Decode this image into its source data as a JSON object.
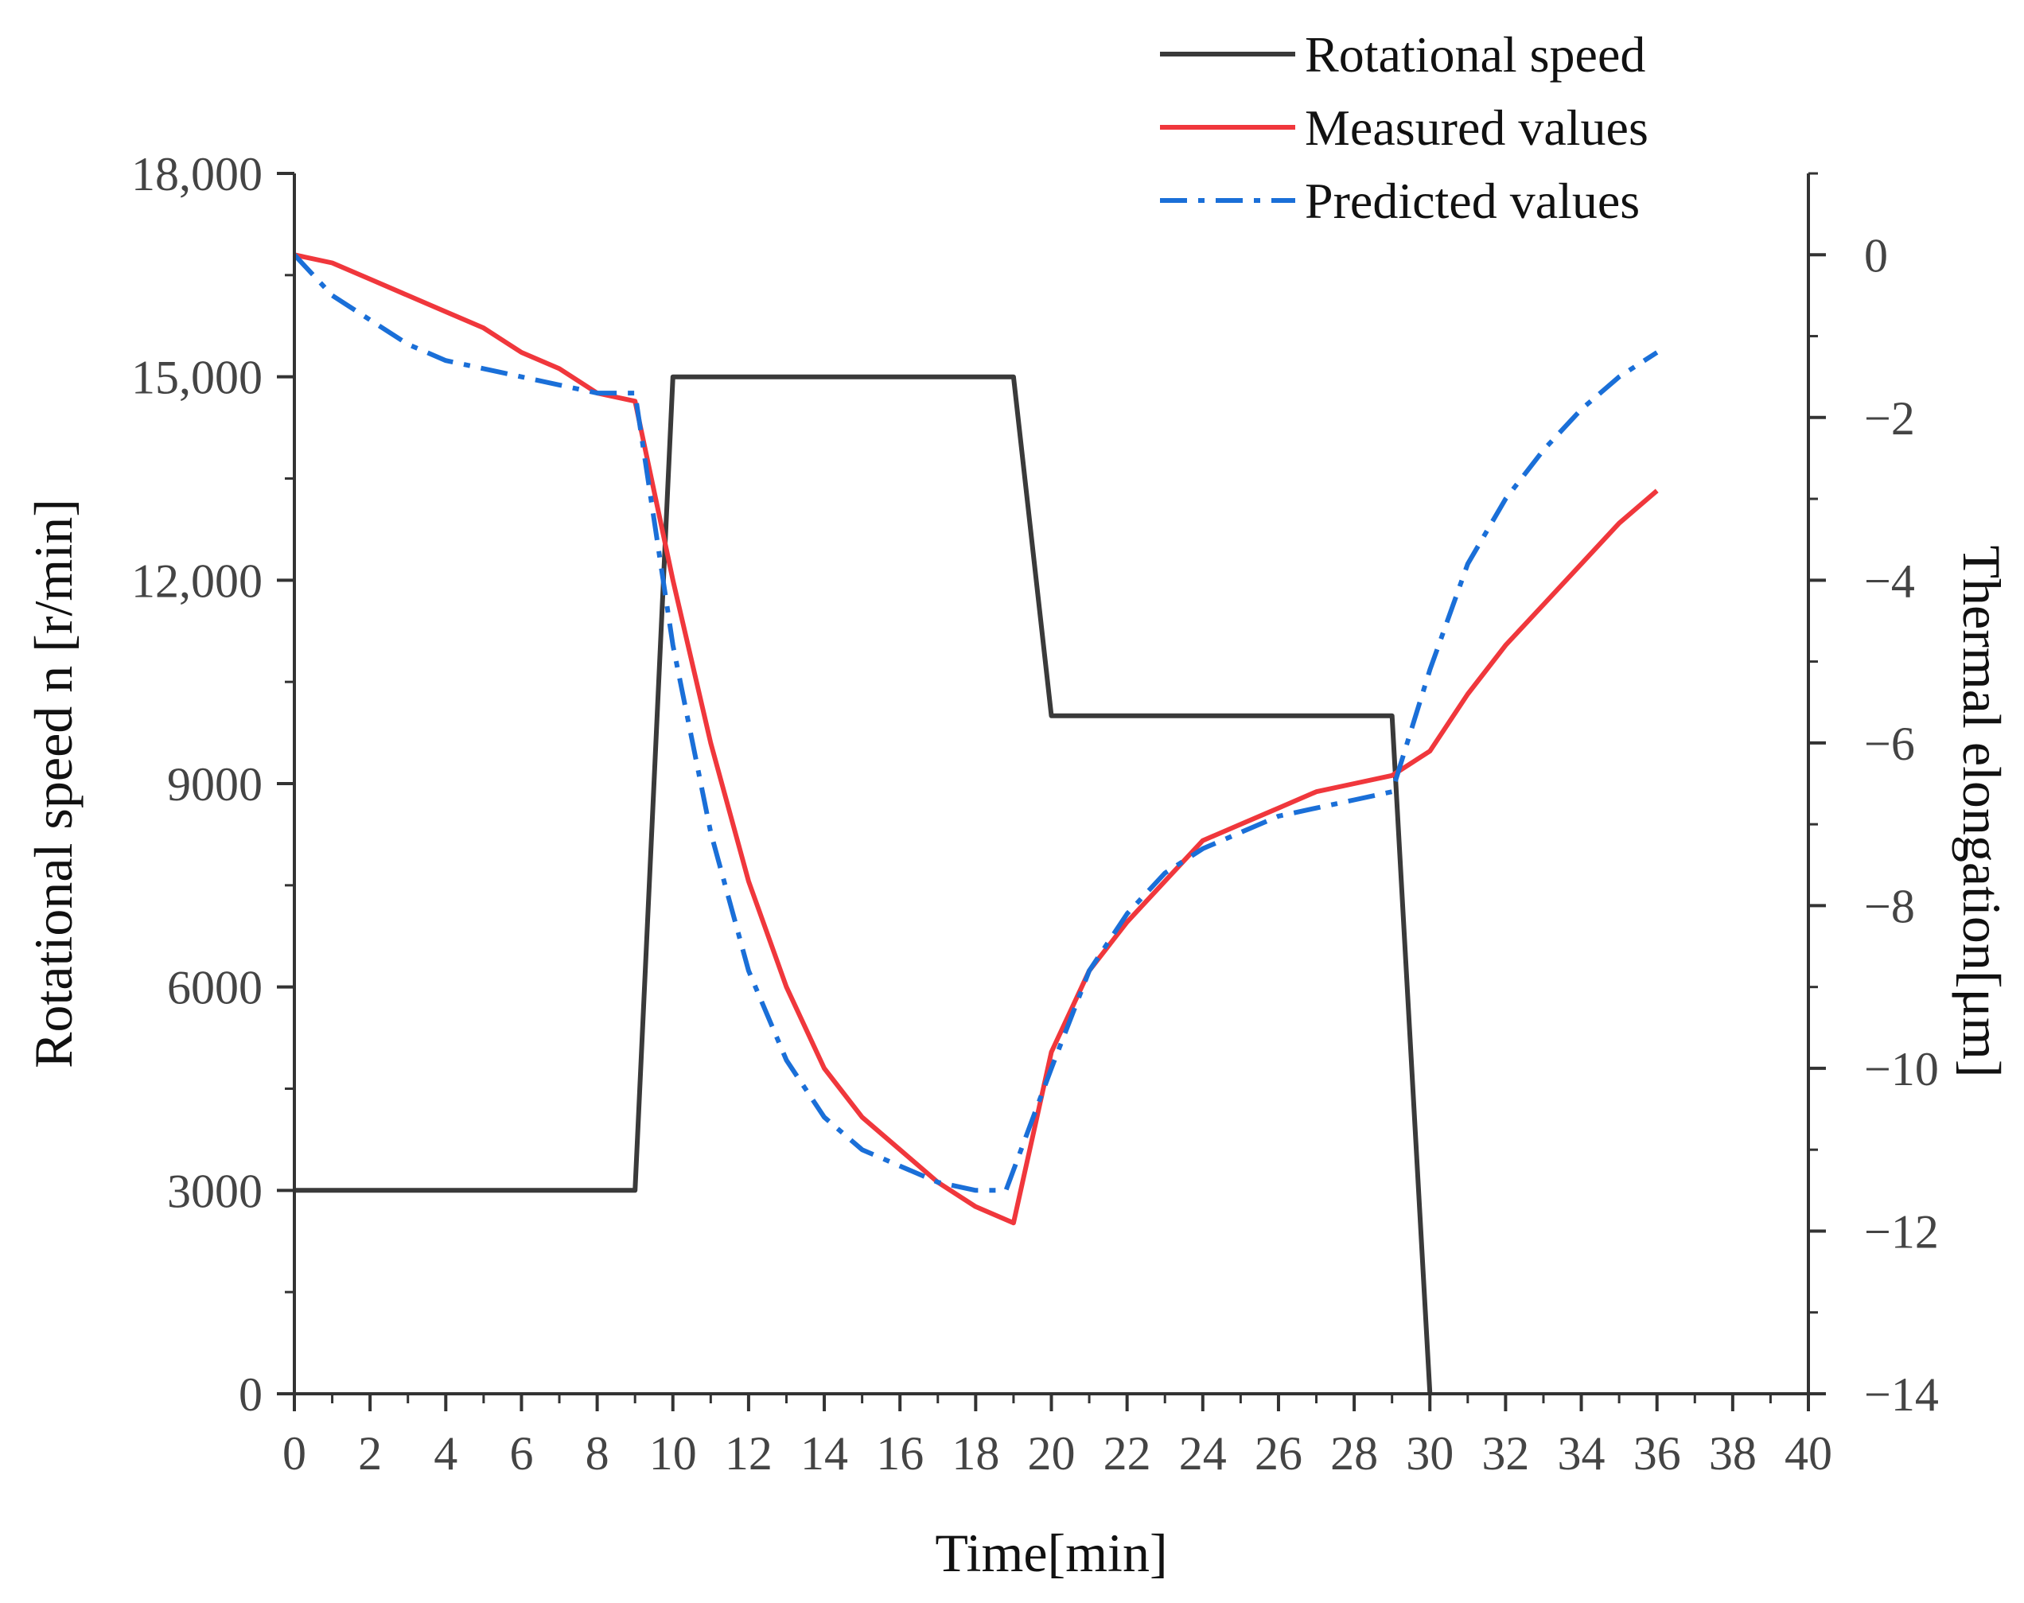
{
  "chart_data": {
    "type": "line",
    "title": "",
    "xlabel": "Time[min]",
    "ylabel": "Rotational speed n [r/min]",
    "y2label": "Thermal elongation[μm]",
    "xlim": [
      0,
      40
    ],
    "ylim": [
      0,
      18000
    ],
    "y2lim": [
      -14,
      1
    ],
    "grid": false,
    "legend_position": "top-right",
    "x_ticks": [
      0,
      2,
      4,
      6,
      8,
      10,
      12,
      14,
      16,
      18,
      20,
      22,
      24,
      26,
      28,
      30,
      32,
      34,
      36,
      38,
      40
    ],
    "x_tick_labels": [
      "0",
      "2",
      "4",
      "6",
      "8",
      "10",
      "12",
      "14",
      "16",
      "18",
      "20",
      "22",
      "24",
      "26",
      "28",
      "30",
      "32",
      "34",
      "36",
      "38",
      "40"
    ],
    "y_ticks": [
      0,
      3000,
      6000,
      9000,
      12000,
      15000,
      18000
    ],
    "y_tick_labels": [
      "0",
      "3000",
      "6000",
      "9000",
      "12,000",
      "15,000",
      "18,000"
    ],
    "y2_ticks": [
      0,
      -2,
      -4,
      -6,
      -8,
      -10,
      -12,
      -14
    ],
    "y2_tick_labels": [
      "0",
      "−2",
      "−4",
      "−6",
      "−8",
      "−10",
      "−12",
      "−14"
    ],
    "series": [
      {
        "name": "Rotational speed",
        "axis": "left",
        "color": "#3a3a3a",
        "dash": "solid",
        "x": [
          0,
          9,
          10,
          19,
          20,
          29,
          30
        ],
        "values": [
          3000,
          3000,
          15000,
          15000,
          10000,
          10000,
          0
        ]
      },
      {
        "name": "Measured values",
        "axis": "right",
        "color": "#f0373c",
        "dash": "solid",
        "x": [
          0,
          1,
          2,
          3,
          4,
          5,
          6,
          7,
          8,
          9,
          10,
          11,
          12,
          13,
          14,
          15,
          16,
          17,
          18,
          19,
          20,
          21,
          22,
          23,
          24,
          25,
          26,
          27,
          28,
          29,
          30,
          31,
          32,
          33,
          34,
          35,
          36
        ],
        "values": [
          0,
          -0.1,
          -0.3,
          -0.5,
          -0.7,
          -0.9,
          -1.2,
          -1.4,
          -1.7,
          -1.8,
          -4,
          -6,
          -7.7,
          -9,
          -10,
          -10.6,
          -11,
          -11.4,
          -11.7,
          -11.9,
          -9.8,
          -8.8,
          -8.2,
          -7.7,
          -7.2,
          -7,
          -6.8,
          -6.6,
          -6.5,
          -6.4,
          -6.1,
          -5.4,
          -4.8,
          -4.3,
          -3.8,
          -3.3,
          -2.9
        ]
      },
      {
        "name": "Predicted values",
        "axis": "right",
        "color": "#1a6fd8",
        "dash": "dashdot",
        "x": [
          0,
          1,
          2,
          3,
          4,
          5,
          6,
          7,
          8,
          9,
          10,
          11,
          12,
          13,
          14,
          15,
          16,
          17,
          18,
          18.8,
          20,
          21,
          22,
          23,
          24,
          25,
          26,
          27,
          28,
          29,
          30,
          31,
          32,
          33,
          34,
          35,
          36
        ],
        "values": [
          0,
          -0.5,
          -0.8,
          -1.1,
          -1.3,
          -1.4,
          -1.5,
          -1.6,
          -1.7,
          -1.7,
          -4.8,
          -7.1,
          -8.8,
          -9.9,
          -10.6,
          -11,
          -11.2,
          -11.4,
          -11.5,
          -11.5,
          -10,
          -8.8,
          -8.1,
          -7.6,
          -7.3,
          -7.1,
          -6.9,
          -6.8,
          -6.7,
          -6.6,
          -5.1,
          -3.8,
          -3,
          -2.4,
          -1.9,
          -1.5,
          -1.2
        ]
      }
    ]
  }
}
